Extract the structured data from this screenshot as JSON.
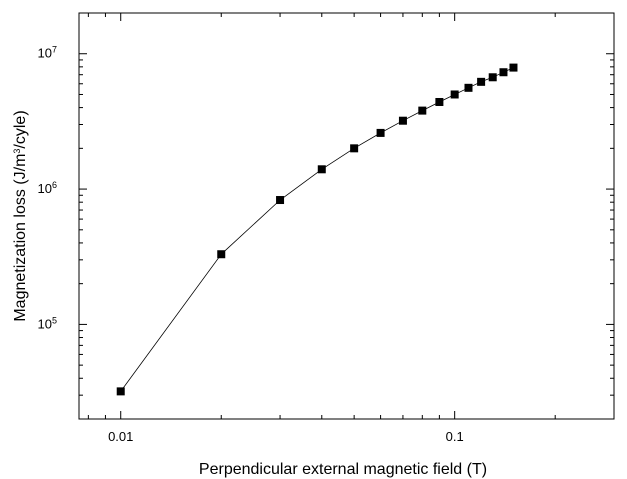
{
  "chart_data": {
    "type": "line",
    "title": "",
    "xlabel": "Perpendicular external magnetic field (T)",
    "ylabel": {
      "prefix": "Magnetization loss (J/m",
      "sup": "3",
      "suffix": "/cyle)"
    },
    "xscale": "log",
    "yscale": "log",
    "xlim": [
      0.0075,
      0.3
    ],
    "ylim": [
      20000,
      20000000
    ],
    "x_ticks": [
      {
        "value": 0.01,
        "label": "0.01"
      },
      {
        "value": 0.1,
        "label": "0.1"
      }
    ],
    "y_ticks": [
      {
        "value": 100000,
        "base": "10",
        "exp": "5"
      },
      {
        "value": 1000000,
        "base": "10",
        "exp": "6"
      },
      {
        "value": 10000000,
        "base": "10",
        "exp": "7"
      }
    ],
    "grid": false,
    "legend": "none",
    "series": [
      {
        "marker": "square",
        "color": "#000000",
        "x": [
          0.01,
          0.02,
          0.03,
          0.04,
          0.05,
          0.06,
          0.07,
          0.08,
          0.09,
          0.1,
          0.11,
          0.12,
          0.13,
          0.14,
          0.15
        ],
        "y": [
          32000,
          330000,
          830000,
          1400000,
          2000000,
          2600000,
          3200000,
          3800000,
          4400000,
          5000000,
          5600000,
          6200000,
          6700000,
          7300000,
          7900000
        ]
      }
    ]
  }
}
